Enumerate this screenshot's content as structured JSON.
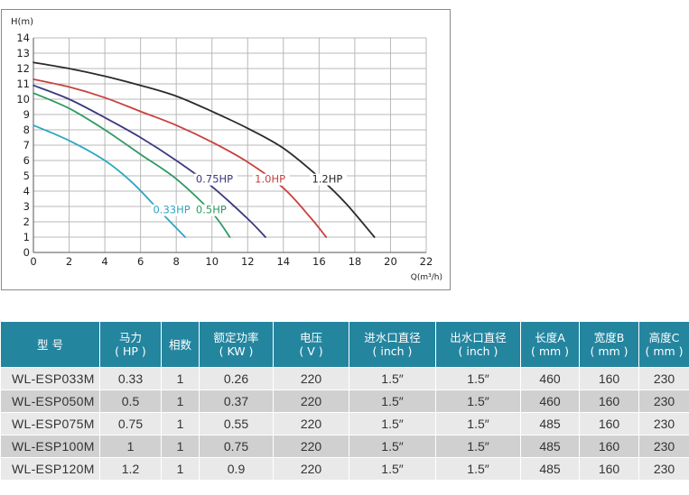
{
  "chart_data": {
    "type": "line",
    "ylabel": "H(m)",
    "xlabel": "Q(m³/h)",
    "xlim": [
      0,
      22
    ],
    "ylim": [
      0,
      14
    ],
    "xticks": [
      "0",
      "2",
      "4",
      "6",
      "8",
      "10",
      "12",
      "14",
      "16",
      "18",
      "20",
      "22"
    ],
    "yticks": [
      "0",
      "1",
      "2",
      "3",
      "4",
      "5",
      "6",
      "7",
      "8",
      "9",
      "10",
      "11",
      "12",
      "13",
      "14"
    ],
    "grid": true,
    "series": [
      {
        "name": "0.33HP",
        "color": "#2ea6c2",
        "x": [
          0,
          2,
          4,
          5.5,
          7,
          8.5
        ],
        "y": [
          8.3,
          7.3,
          6.0,
          4.6,
          2.8,
          1.0
        ]
      },
      {
        "name": "0.5HP",
        "color": "#2e9a63",
        "x": [
          0,
          2,
          4,
          6,
          8,
          10,
          11
        ],
        "y": [
          10.4,
          9.4,
          8.0,
          6.4,
          4.8,
          2.6,
          1.0
        ]
      },
      {
        "name": "0.75HP",
        "color": "#3b3a80",
        "x": [
          0,
          2,
          4,
          6,
          8,
          10,
          12,
          13
        ],
        "y": [
          10.9,
          10.0,
          8.8,
          7.5,
          6.0,
          4.3,
          2.2,
          1.0
        ]
      },
      {
        "name": "1.0HP",
        "color": "#c8413d",
        "x": [
          0,
          2,
          4,
          6,
          8,
          10,
          12,
          14,
          15.5,
          16.4
        ],
        "y": [
          11.3,
          10.8,
          10.1,
          9.2,
          8.3,
          7.2,
          5.9,
          4.2,
          2.3,
          1.0
        ]
      },
      {
        "name": "1.2HP",
        "color": "#2b2b2b",
        "x": [
          0,
          2,
          4,
          6,
          8,
          10,
          12,
          14,
          16,
          17.5,
          19.1
        ],
        "y": [
          12.4,
          12.0,
          11.5,
          10.9,
          10.2,
          9.2,
          8.1,
          6.8,
          4.9,
          3.2,
          1.0
        ]
      }
    ],
    "labels": [
      {
        "text": "0.33HP",
        "x": 6.7,
        "y": 2.55,
        "color": "#2ea6c2"
      },
      {
        "text": "0.5HP",
        "x": 9.1,
        "y": 2.55,
        "color": "#2e9a63"
      },
      {
        "text": "0.75HP",
        "x": 9.1,
        "y": 4.55,
        "color": "#3b3a80"
      },
      {
        "text": "1.0HP",
        "x": 12.4,
        "y": 4.55,
        "color": "#c8413d"
      },
      {
        "text": "1.2HP",
        "x": 15.6,
        "y": 4.55,
        "color": "#2b2b2b"
      }
    ]
  },
  "table": {
    "headers": [
      {
        "line1": "型 号",
        "line2": ""
      },
      {
        "line1": "马力",
        "line2": "( HP )"
      },
      {
        "line1": "相数",
        "line2": ""
      },
      {
        "line1": "额定功率",
        "line2": "( KW )"
      },
      {
        "line1": "电压",
        "line2": "( V )"
      },
      {
        "line1": "进水口直径",
        "line2": "( inch )"
      },
      {
        "line1": "出水口直径",
        "line2": "( inch )"
      },
      {
        "line1": "长度A",
        "line2": "( mm )"
      },
      {
        "line1": "宽度B",
        "line2": "( mm )"
      },
      {
        "line1": "高度C",
        "line2": "( mm )"
      }
    ],
    "rows": [
      [
        "WL-ESP033M",
        "0.33",
        "1",
        "0.26",
        "220",
        "1.5″",
        "1.5″",
        "460",
        "160",
        "230"
      ],
      [
        "WL-ESP050M",
        "0.5",
        "1",
        "0.37",
        "220",
        "1.5″",
        "1.5″",
        "460",
        "160",
        "230"
      ],
      [
        "WL-ESP075M",
        "0.75",
        "1",
        "0.55",
        "220",
        "1.5″",
        "1.5″",
        "485",
        "160",
        "230"
      ],
      [
        "WL-ESP100M",
        "1",
        "1",
        "0.75",
        "220",
        "1.5″",
        "1.5″",
        "485",
        "160",
        "230"
      ],
      [
        "WL-ESP120M",
        "1.2",
        "1",
        "0.9",
        "220",
        "1.5″",
        "1.5″",
        "485",
        "160",
        "230"
      ]
    ]
  }
}
